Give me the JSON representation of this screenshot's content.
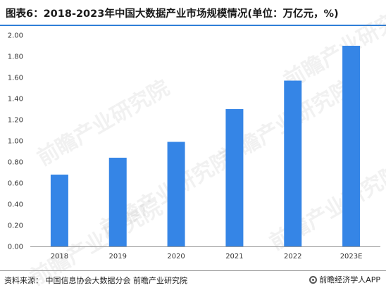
{
  "title": "图表6：2018-2023年中国大数据产业市场规模情况(单位：万亿元，%)",
  "source": "资料来源：  中国信息协会大数据分会  前瞻产业研究院",
  "brand": "前瞻经济学人APP",
  "watermark": "前瞻产业研究院",
  "colors": {
    "bar": "#3585e6",
    "axis": "#999999",
    "accent": "#2f7fd8"
  },
  "chart_data": {
    "type": "bar",
    "categories": [
      "2018",
      "2019",
      "2020",
      "2021",
      "2022",
      "2023E"
    ],
    "values": [
      0.68,
      0.84,
      0.99,
      1.3,
      1.57,
      1.9
    ],
    "ylim": [
      0,
      2.0
    ],
    "yticks": [
      "0.00",
      "0.20",
      "0.40",
      "0.60",
      "0.80",
      "1.00",
      "1.20",
      "1.40",
      "1.60",
      "1.80",
      "2.00"
    ],
    "grid": false
  }
}
